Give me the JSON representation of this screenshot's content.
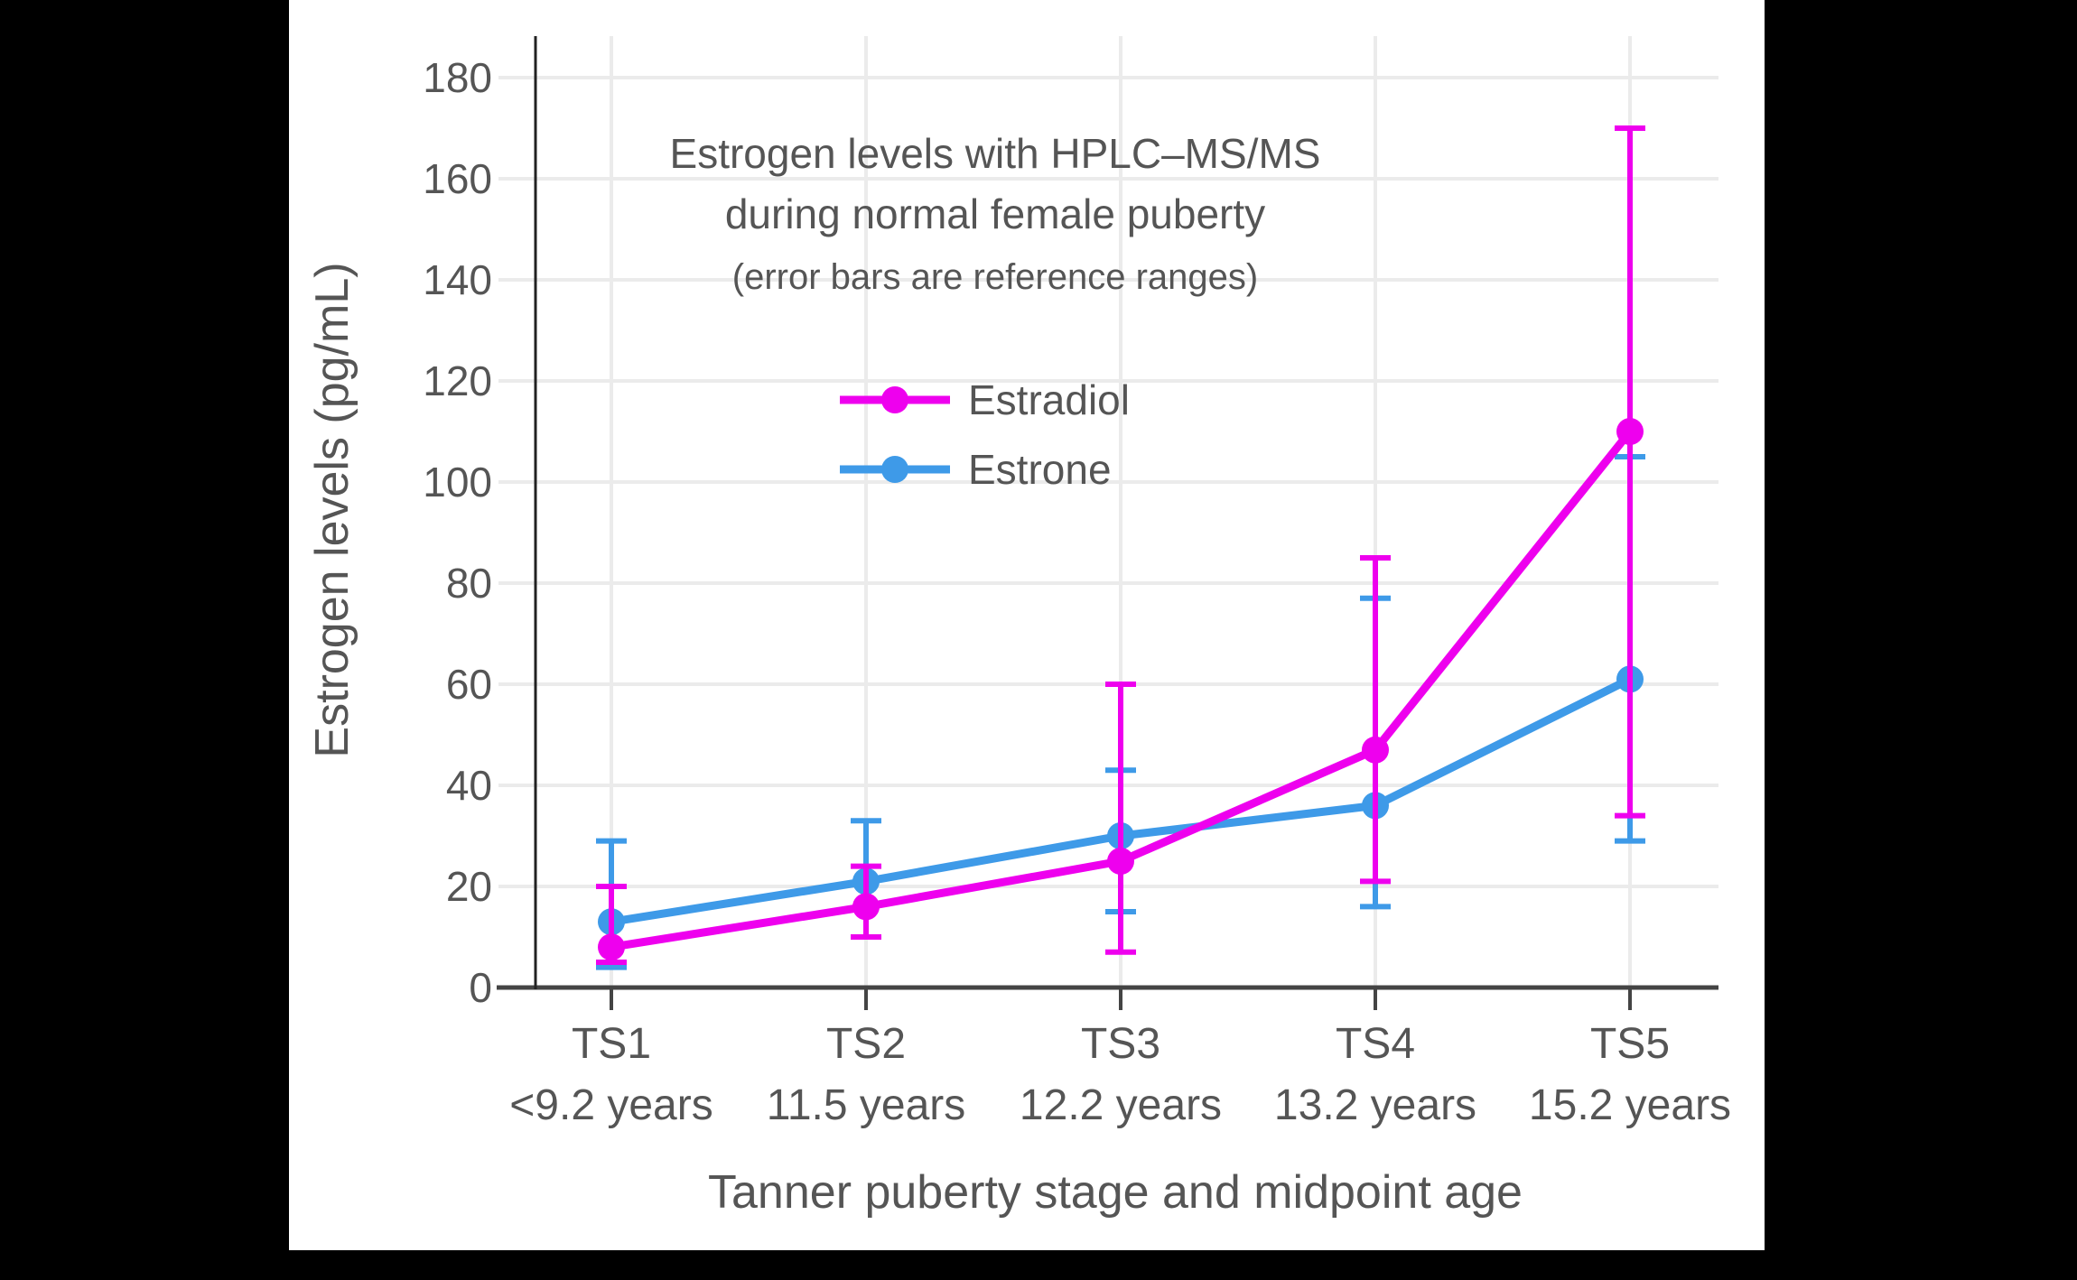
{
  "chart_data": {
    "type": "line",
    "title": "Estrogen levels with HPLC–MS/MS",
    "title_line2": "during normal female puberty",
    "subtitle": "(error bars are reference ranges)",
    "xlabel": "Tanner puberty stage and midpoint age",
    "ylabel": "Estrogen levels (pg/mL)",
    "categories": [
      "TS1",
      "TS2",
      "TS3",
      "TS4",
      "TS5"
    ],
    "category_sublabels": [
      "<9.2 years",
      "11.5 years",
      "12.2 years",
      "13.2 years",
      "15.2 years"
    ],
    "y_ticks": [
      0,
      20,
      40,
      60,
      80,
      100,
      120,
      140,
      160,
      180
    ],
    "ylim": [
      0,
      188
    ],
    "grid": true,
    "legend_position": "inside-upper-center",
    "series": [
      {
        "name": "Estradiol",
        "color": "#EE00EE",
        "values": [
          8,
          16,
          25,
          47,
          110
        ],
        "error_low": [
          5,
          10,
          7,
          21,
          34
        ],
        "error_high": [
          20,
          24,
          60,
          85,
          170
        ]
      },
      {
        "name": "Estrone",
        "color": "#3E9AE8",
        "values": [
          13,
          21,
          30,
          36,
          61
        ],
        "error_low": [
          4,
          10,
          15,
          16,
          29
        ],
        "error_high": [
          29,
          33,
          43,
          77,
          105
        ]
      }
    ]
  },
  "colors": {
    "background": "#000000",
    "panel": "#FFFFFF",
    "text": "#555555",
    "x_axis": "#444444",
    "y_axis": "#222222",
    "grid": "#EBEBEB"
  }
}
